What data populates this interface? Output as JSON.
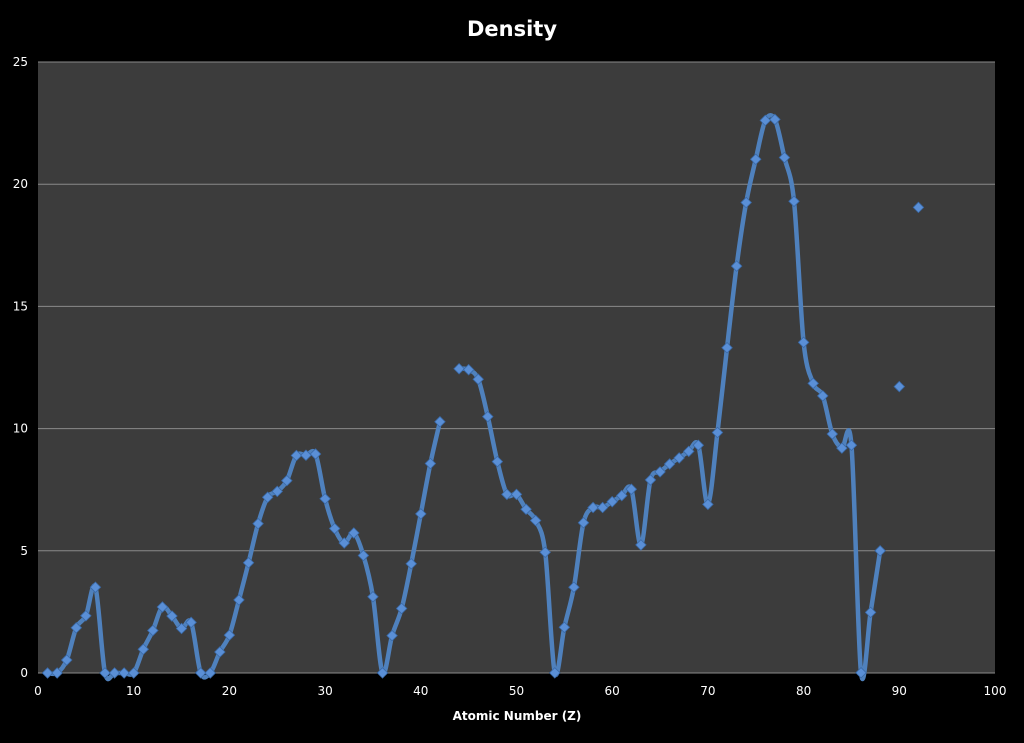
{
  "chart_data": {
    "type": "line",
    "title": "Density",
    "xlabel": "Atomic Number (Z)",
    "ylabel": "",
    "xlim": [
      0,
      100
    ],
    "ylim": [
      0,
      25
    ],
    "xticks": [
      "0",
      "10",
      "20",
      "30",
      "40",
      "50",
      "60",
      "70",
      "80",
      "90",
      "100"
    ],
    "yticks": [
      "0",
      "5",
      "10",
      "15",
      "20",
      "25"
    ],
    "grid": "horizontal",
    "legend": "none",
    "colors": {
      "background": "#000000",
      "plot_area": "#3c3c3c",
      "grid": "#8a8a8a",
      "series": "#4f81bd",
      "marker": "#5a8fd6",
      "text": "#ffffff"
    },
    "series": [
      {
        "segments": [
          [
            [
              1,
              0.0001
            ],
            [
              2,
              0.0002
            ],
            [
              3,
              0.53
            ],
            [
              4,
              1.85
            ],
            [
              5,
              2.34
            ],
            [
              6,
              3.51
            ],
            [
              7,
              0.0013
            ],
            [
              8,
              0.0014
            ],
            [
              9,
              0.0017
            ],
            [
              10,
              0.0009
            ],
            [
              11,
              0.97
            ],
            [
              12,
              1.74
            ],
            [
              13,
              2.7
            ],
            [
              14,
              2.33
            ],
            [
              15,
              1.82
            ],
            [
              16,
              2.07
            ],
            [
              17,
              0.0032
            ],
            [
              18,
              0.0018
            ],
            [
              19,
              0.86
            ],
            [
              20,
              1.55
            ],
            [
              21,
              2.99
            ],
            [
              22,
              4.51
            ],
            [
              23,
              6.11
            ],
            [
              24,
              7.19
            ],
            [
              25,
              7.43
            ],
            [
              26,
              7.87
            ],
            [
              27,
              8.9
            ],
            [
              28,
              8.91
            ],
            [
              29,
              8.96
            ],
            [
              30,
              7.13
            ],
            [
              31,
              5.91
            ],
            [
              32,
              5.32
            ],
            [
              33,
              5.73
            ],
            [
              34,
              4.81
            ],
            [
              35,
              3.12
            ],
            [
              36,
              0.0037
            ],
            [
              37,
              1.53
            ],
            [
              38,
              2.64
            ],
            [
              39,
              4.47
            ],
            [
              40,
              6.51
            ],
            [
              41,
              8.57
            ],
            [
              42,
              10.28
            ]
          ],
          [
            [
              44,
              12.45
            ],
            [
              45,
              12.41
            ],
            [
              46,
              12.02
            ],
            [
              47,
              10.49
            ],
            [
              48,
              8.65
            ],
            [
              49,
              7.31
            ],
            [
              50,
              7.31
            ],
            [
              51,
              6.7
            ],
            [
              52,
              6.24
            ],
            [
              53,
              4.94
            ],
            [
              54,
              0.0059
            ],
            [
              55,
              1.87
            ],
            [
              56,
              3.51
            ],
            [
              57,
              6.15
            ],
            [
              58,
              6.77
            ],
            [
              59,
              6.77
            ],
            [
              60,
              7.01
            ],
            [
              61,
              7.26
            ],
            [
              62,
              7.52
            ],
            [
              63,
              5.24
            ],
            [
              64,
              7.9
            ],
            [
              65,
              8.23
            ],
            [
              66,
              8.55
            ],
            [
              67,
              8.8
            ],
            [
              68,
              9.07
            ],
            [
              69,
              9.32
            ],
            [
              70,
              6.9
            ],
            [
              71,
              9.84
            ],
            [
              72,
              13.31
            ],
            [
              73,
              16.65
            ],
            [
              74,
              19.25
            ],
            [
              75,
              21.02
            ],
            [
              76,
              22.61
            ],
            [
              77,
              22.65
            ],
            [
              78,
              21.09
            ],
            [
              79,
              19.3
            ],
            [
              80,
              13.53
            ],
            [
              81,
              11.85
            ],
            [
              82,
              11.34
            ],
            [
              83,
              9.78
            ],
            [
              84,
              9.2
            ],
            [
              85,
              9.32
            ],
            [
              86,
              0.0097
            ],
            [
              87,
              2.48
            ],
            [
              88,
              5.0
            ]
          ],
          [
            [
              90,
              11.72
            ]
          ],
          [
            [
              92,
              19.05
            ]
          ]
        ]
      }
    ]
  }
}
